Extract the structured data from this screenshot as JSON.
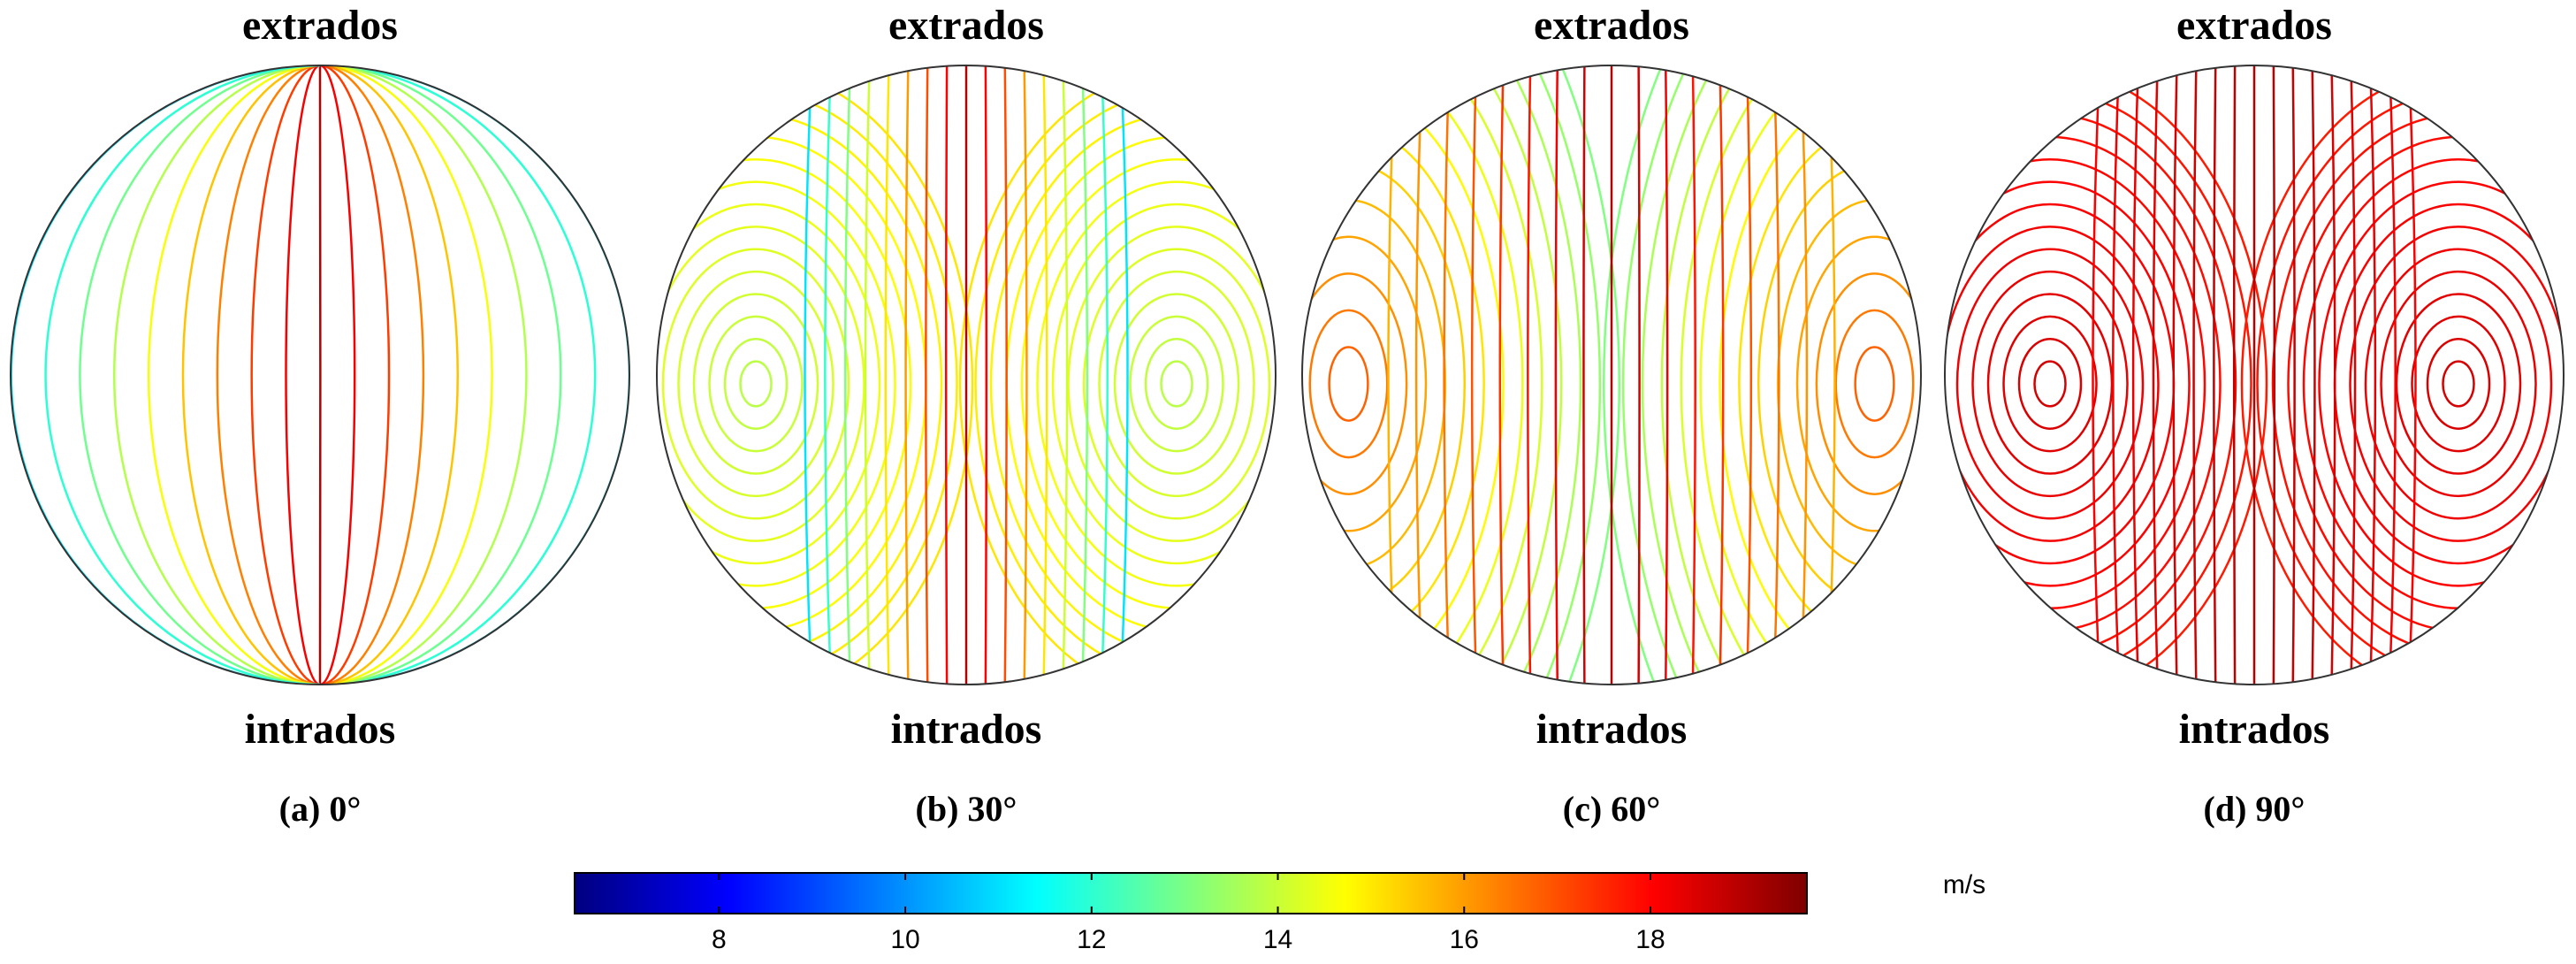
{
  "panels": [
    {
      "top": "extrados",
      "bottom": "intrados",
      "caption": "(a) 0°"
    },
    {
      "top": "extrados",
      "bottom": "intrados",
      "caption": "(b) 30°"
    },
    {
      "top": "extrados",
      "bottom": "intrados",
      "caption": "(c) 60°"
    },
    {
      "top": "extrados",
      "bottom": "intrados",
      "caption": "(d) 90°"
    }
  ],
  "colorbar": {
    "unit": "m/s",
    "range": [
      6.45,
      19.68
    ],
    "ticks": [
      8,
      10,
      12,
      14,
      16,
      18
    ]
  }
}
